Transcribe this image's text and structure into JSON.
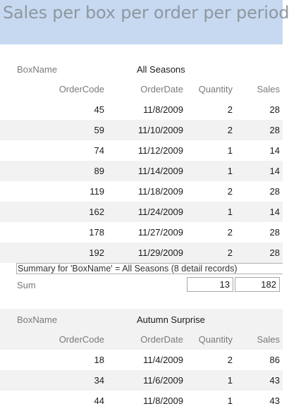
{
  "report": {
    "title": "Sales per box per order per period"
  },
  "columns": {
    "box_name": "BoxName",
    "order_code": "OrderCode",
    "order_date": "OrderDate",
    "quantity": "Quantity",
    "sales": "Sales"
  },
  "groups": [
    {
      "box_name": "All Seasons",
      "rows": [
        {
          "code": "45",
          "date": "11/8/2009",
          "qty": "2",
          "sales": "28"
        },
        {
          "code": "59",
          "date": "11/10/2009",
          "qty": "2",
          "sales": "28"
        },
        {
          "code": "74",
          "date": "11/12/2009",
          "qty": "1",
          "sales": "14"
        },
        {
          "code": "89",
          "date": "11/14/2009",
          "qty": "1",
          "sales": "14"
        },
        {
          "code": "119",
          "date": "11/18/2009",
          "qty": "2",
          "sales": "28"
        },
        {
          "code": "162",
          "date": "11/24/2009",
          "qty": "1",
          "sales": "14"
        },
        {
          "code": "178",
          "date": "11/27/2009",
          "qty": "2",
          "sales": "28"
        },
        {
          "code": "192",
          "date": "11/29/2009",
          "qty": "2",
          "sales": "28"
        }
      ],
      "summary": "Summary for 'BoxName' =  All Seasons (8 detail records)",
      "sum_label": "Sum",
      "sum_qty": "13",
      "sum_sales": "182"
    },
    {
      "box_name": "Autumn Surprise",
      "rows": [
        {
          "code": "18",
          "date": "11/4/2009",
          "qty": "2",
          "sales": "86"
        },
        {
          "code": "34",
          "date": "11/6/2009",
          "qty": "1",
          "sales": "43"
        },
        {
          "code": "44",
          "date": "11/8/2009",
          "qty": "1",
          "sales": "43"
        }
      ]
    }
  ]
}
